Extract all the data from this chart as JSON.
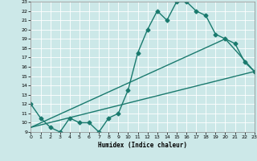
{
  "xlabel": "Humidex (Indice chaleur)",
  "ylabel": "",
  "xlim": [
    0,
    23
  ],
  "ylim": [
    9,
    23
  ],
  "xticks": [
    0,
    1,
    2,
    3,
    4,
    5,
    6,
    7,
    8,
    9,
    10,
    11,
    12,
    13,
    14,
    15,
    16,
    17,
    18,
    19,
    20,
    21,
    22,
    23
  ],
  "yticks": [
    9,
    10,
    11,
    12,
    13,
    14,
    15,
    16,
    17,
    18,
    19,
    20,
    21,
    22,
    23
  ],
  "line_color": "#1a7a6e",
  "bg_color": "#cce8e8",
  "grid_color": "#ffffff",
  "line1_x": [
    0,
    1,
    2,
    3,
    4,
    5,
    6,
    7,
    8,
    9,
    10,
    11,
    12,
    13,
    14,
    15,
    16,
    17,
    18,
    19,
    20,
    21,
    22,
    23
  ],
  "line1_y": [
    12,
    10.5,
    9.5,
    9.0,
    10.5,
    10.0,
    10.0,
    9.0,
    10.5,
    11.0,
    13.5,
    17.5,
    20.0,
    22.0,
    21.0,
    23.0,
    23.0,
    22.0,
    21.5,
    19.5,
    19.0,
    18.5,
    16.5,
    15.5
  ],
  "line2_x": [
    0,
    23
  ],
  "line2_y": [
    9.5,
    15.5
  ],
  "line3_x": [
    0,
    20,
    23
  ],
  "line3_y": [
    9.5,
    19.0,
    15.5
  ],
  "marker": "D",
  "marker_size": 2.5,
  "line_width": 1.0
}
